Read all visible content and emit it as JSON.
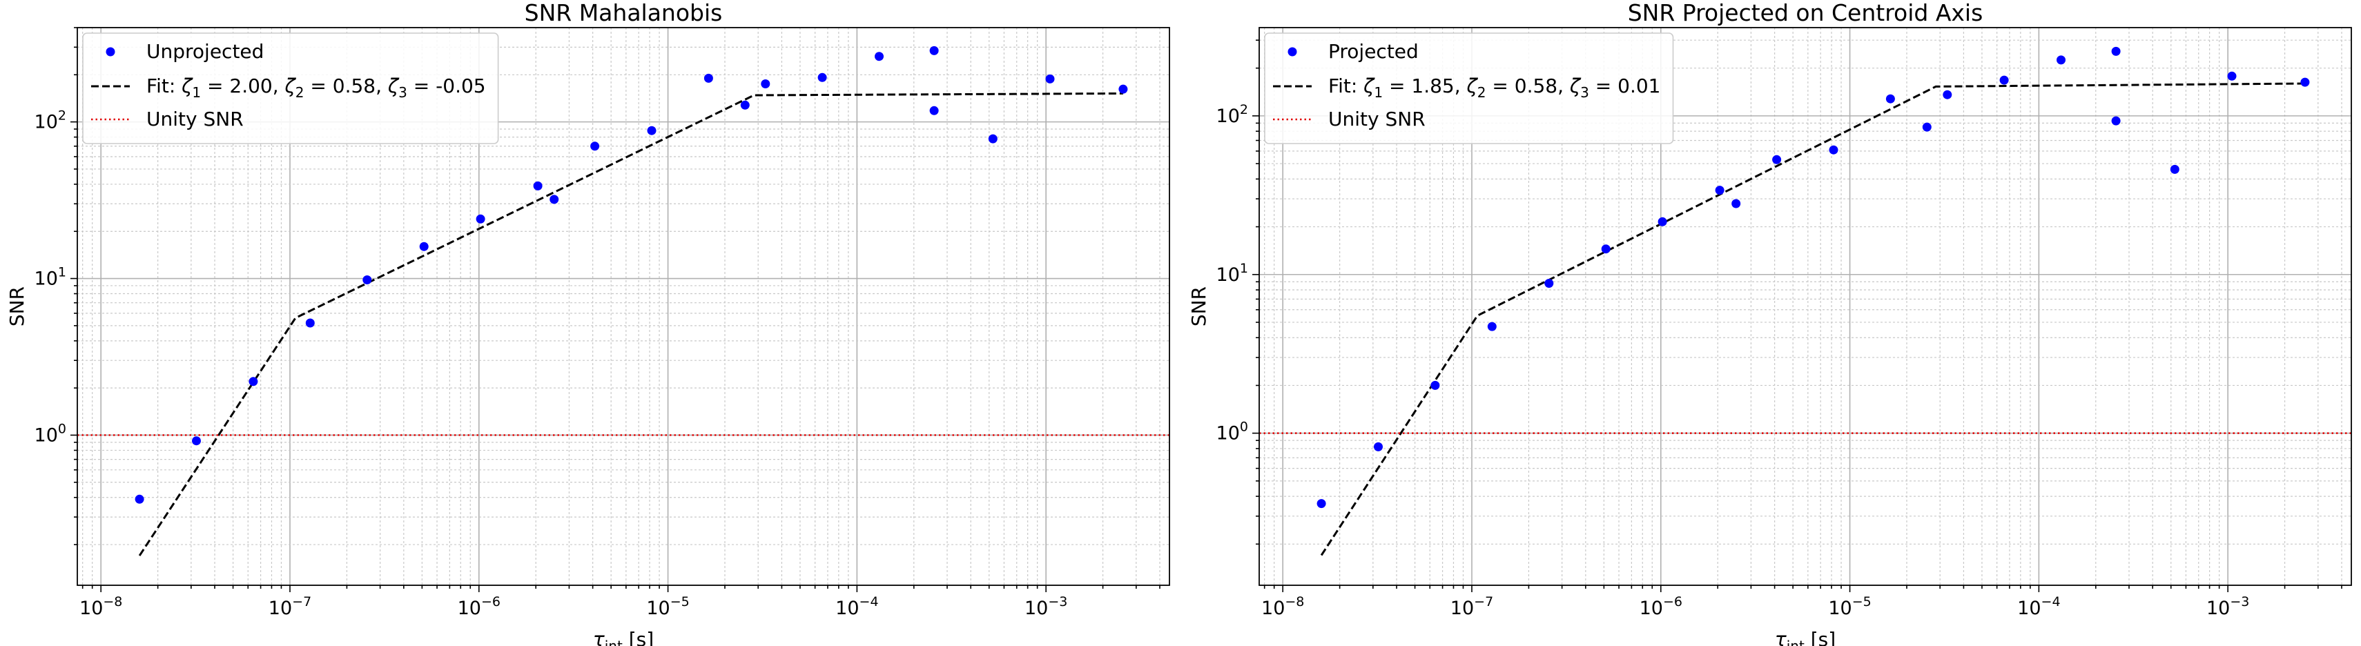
{
  "chart_data": [
    {
      "type": "scatter",
      "title": "SNR Mahalanobis",
      "xlabel_main": "τ",
      "xlabel_sub": "int",
      "xlabel_unit": " [s]",
      "ylabel": "SNR",
      "xscale": "log",
      "yscale": "log",
      "xlim": [
        7.5e-09,
        0.0045
      ],
      "ylim": [
        0.11,
        400
      ],
      "xticks": [
        {
          "value": 1e-08,
          "label": "10",
          "exp": "−8"
        },
        {
          "value": 1e-07,
          "label": "10",
          "exp": "−7"
        },
        {
          "value": 1e-06,
          "label": "10",
          "exp": "−6"
        },
        {
          "value": 1e-05,
          "label": "10",
          "exp": "−5"
        },
        {
          "value": 0.0001,
          "label": "10",
          "exp": "−4"
        },
        {
          "value": 0.001,
          "label": "10",
          "exp": "−3"
        }
      ],
      "yticks": [
        {
          "value": 1,
          "label": "10",
          "exp": "0"
        },
        {
          "value": 10,
          "label": "10",
          "exp": "1"
        },
        {
          "value": 100,
          "label": "10",
          "exp": "2"
        }
      ],
      "grid": true,
      "legend_position": "top-left",
      "series": [
        {
          "name": "Unprojected",
          "kind": "scatter",
          "color": "#0000ff",
          "points": [
            [
              1.6e-08,
              0.39
            ],
            [
              3.2e-08,
              0.92
            ],
            [
              6.4e-08,
              2.2
            ],
            [
              1.28e-07,
              5.2
            ],
            [
              2.56e-07,
              9.8
            ],
            [
              5.12e-07,
              16
            ],
            [
              1.02e-06,
              24
            ],
            [
              2.05e-06,
              39
            ],
            [
              2.5e-06,
              32
            ],
            [
              4.1e-06,
              70
            ],
            [
              8.2e-06,
              88
            ],
            [
              1.64e-05,
              190
            ],
            [
              2.56e-05,
              128
            ],
            [
              3.28e-05,
              175
            ],
            [
              6.55e-05,
              192
            ],
            [
              0.000131,
              262
            ],
            [
              0.000256,
              285
            ],
            [
              0.000256,
              118
            ],
            [
              0.000524,
              78
            ],
            [
              0.00105,
              188
            ],
            [
              0.00256,
              162
            ]
          ]
        },
        {
          "name_prefix": "Fit: ",
          "name_parts": [
            {
              "sym": "ζ",
              "sub": "1",
              "eq": " =  2.00, "
            },
            {
              "sym": "ζ",
              "sub": "2",
              "eq": " =  0.58, "
            },
            {
              "sym": "ζ",
              "sub": "3",
              "eq": " =  -0.05"
            }
          ],
          "kind": "line",
          "style": "dashed",
          "color": "#000000",
          "points": [
            [
              1.6e-08,
              0.17
            ],
            [
              1.07e-07,
              5.6
            ],
            [
              2.85e-05,
              148
            ],
            [
              0.00256,
              152
            ]
          ]
        },
        {
          "name": "Unity SNR",
          "kind": "hline",
          "style": "dotted",
          "color": "#e00000",
          "y": 1
        }
      ]
    },
    {
      "type": "scatter",
      "title": "SNR Projected on Centroid Axis",
      "xlabel_main": "τ",
      "xlabel_sub": "int",
      "xlabel_unit": " [s]",
      "ylabel": "SNR",
      "xscale": "log",
      "yscale": "log",
      "xlim": [
        7.5e-09,
        0.0045
      ],
      "ylim": [
        0.11,
        360
      ],
      "xticks": [
        {
          "value": 1e-08,
          "label": "10",
          "exp": "−8"
        },
        {
          "value": 1e-07,
          "label": "10",
          "exp": "−7"
        },
        {
          "value": 1e-06,
          "label": "10",
          "exp": "−6"
        },
        {
          "value": 1e-05,
          "label": "10",
          "exp": "−5"
        },
        {
          "value": 0.0001,
          "label": "10",
          "exp": "−4"
        },
        {
          "value": 0.001,
          "label": "10",
          "exp": "−3"
        }
      ],
      "yticks": [
        {
          "value": 1,
          "label": "10",
          "exp": "0"
        },
        {
          "value": 10,
          "label": "10",
          "exp": "1"
        },
        {
          "value": 100,
          "label": "10",
          "exp": "2"
        }
      ],
      "grid": true,
      "legend_position": "top-left",
      "series": [
        {
          "name": "Projected",
          "kind": "scatter",
          "color": "#0000ff",
          "points": [
            [
              1.6e-08,
              0.36
            ],
            [
              3.2e-08,
              0.82
            ],
            [
              6.4e-08,
              2.0
            ],
            [
              1.28e-07,
              4.7
            ],
            [
              2.56e-07,
              8.8
            ],
            [
              5.12e-07,
              14.5
            ],
            [
              1.02e-06,
              21.5
            ],
            [
              2.05e-06,
              34
            ],
            [
              2.5e-06,
              28
            ],
            [
              4.1e-06,
              53
            ],
            [
              8.2e-06,
              61
            ],
            [
              1.64e-05,
              128
            ],
            [
              2.56e-05,
              85
            ],
            [
              3.28e-05,
              136
            ],
            [
              6.55e-05,
              168
            ],
            [
              0.000131,
              225
            ],
            [
              0.000256,
              255
            ],
            [
              0.000256,
              93
            ],
            [
              0.000524,
              46
            ],
            [
              0.00105,
              178
            ],
            [
              0.00256,
              163
            ]
          ]
        },
        {
          "name_prefix": "Fit: ",
          "name_parts": [
            {
              "sym": "ζ",
              "sub": "1",
              "eq": " =  1.85, "
            },
            {
              "sym": "ζ",
              "sub": "2",
              "eq": " =  0.58, "
            },
            {
              "sym": "ζ",
              "sub": "3",
              "eq": " =  0.01"
            }
          ],
          "kind": "line",
          "style": "dashed",
          "color": "#000000",
          "points": [
            [
              1.6e-08,
              0.17
            ],
            [
              1.07e-07,
              5.5
            ],
            [
              2.85e-05,
              153
            ],
            [
              0.00256,
              160
            ]
          ]
        },
        {
          "name": "Unity SNR",
          "kind": "hline",
          "style": "dotted",
          "color": "#e00000",
          "y": 1
        }
      ]
    }
  ]
}
